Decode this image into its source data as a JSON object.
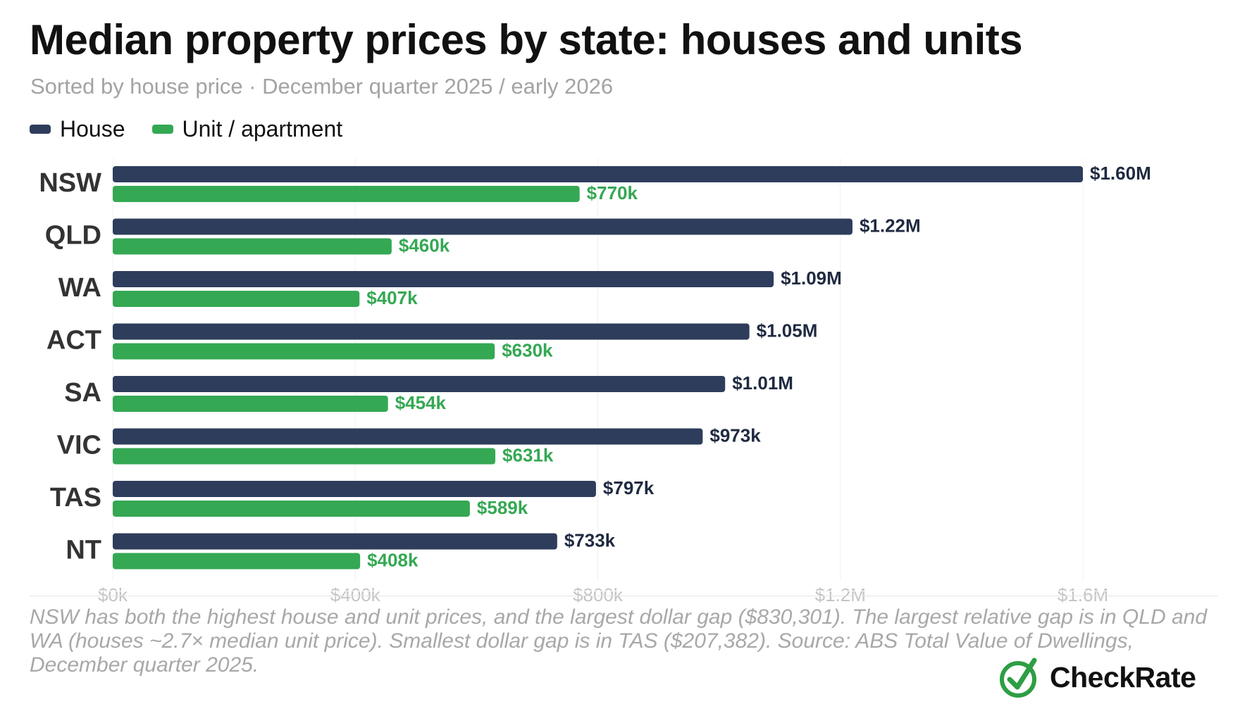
{
  "title": "Median property prices by state: houses and units",
  "subtitle": "Sorted by house price · December quarter 2025 / early 2026",
  "legend": [
    {
      "label": "House",
      "color": "#2e3d5c"
    },
    {
      "label": "Unit / apartment",
      "color": "#34a853"
    }
  ],
  "footnote": "NSW has both the highest house and unit prices, and the largest dollar gap ($830,301). The largest relative gap is in QLD and WA (houses ~2.7× median unit price). Smallest dollar gap is in TAS ($207,382). Source: ABS Total Value of Dwellings, December quarter 2025.",
  "brand": {
    "name": "CheckRate",
    "icon": "checkmark-circle-icon",
    "color": "#2e9e44"
  },
  "chart_data": {
    "type": "bar",
    "orientation": "horizontal",
    "categories": [
      "NSW",
      "QLD",
      "WA",
      "ACT",
      "SA",
      "VIC",
      "TAS",
      "NT"
    ],
    "series": [
      {
        "name": "House",
        "color": "#2e3d5c",
        "values": [
          1600000,
          1220000,
          1090000,
          1050000,
          1010000,
          973000,
          797000,
          733000
        ],
        "labels": [
          "$1.60M",
          "$1.22M",
          "$1.09M",
          "$1.05M",
          "$1.01M",
          "$973k",
          "$797k",
          "$733k"
        ]
      },
      {
        "name": "Unit / apartment",
        "color": "#34a853",
        "values": [
          770000,
          460000,
          407000,
          630000,
          454000,
          631000,
          589000,
          408000
        ],
        "labels": [
          "$770k",
          "$460k",
          "$407k",
          "$630k",
          "$454k",
          "$631k",
          "$589k",
          "$408k"
        ]
      }
    ],
    "x_ticks": [
      "$0k",
      "$400k",
      "$800k",
      "$1.2M",
      "$1.6M"
    ],
    "xlim": [
      0,
      1600000
    ],
    "grid": true,
    "legend_position": "top-left"
  }
}
